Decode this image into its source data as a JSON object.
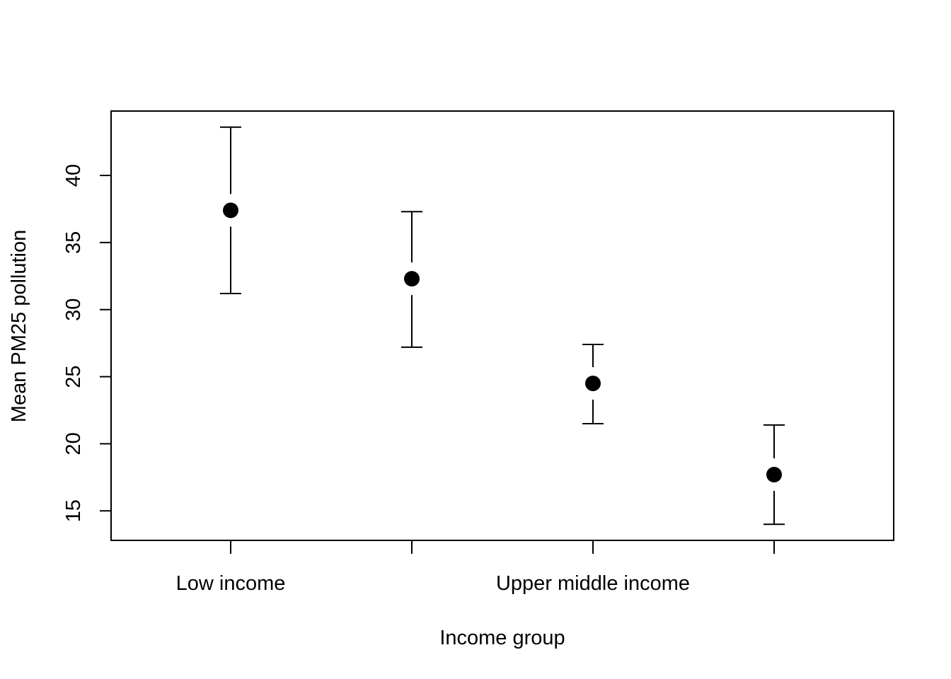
{
  "chart_data": {
    "type": "scatter",
    "title": "",
    "xlabel": "Income group",
    "ylabel": "Mean PM25 pollution",
    "categories": [
      "Low income",
      "",
      "Upper middle income",
      ""
    ],
    "y_ticks": [
      15,
      20,
      25,
      30,
      35,
      40
    ],
    "ylim": [
      12.8,
      44.8
    ],
    "grid": false,
    "legend": "none",
    "series": [
      {
        "points": [
          {
            "x": "Low income",
            "mean": 37.4,
            "lower": 31.2,
            "upper": 43.6
          },
          {
            "x": "",
            "mean": 32.3,
            "lower": 27.2,
            "upper": 37.3
          },
          {
            "x": "Upper middle income",
            "mean": 24.5,
            "lower": 21.5,
            "upper": 27.4
          },
          {
            "x": "",
            "mean": 17.7,
            "lower": 14.0,
            "upper": 21.4
          }
        ]
      }
    ]
  }
}
